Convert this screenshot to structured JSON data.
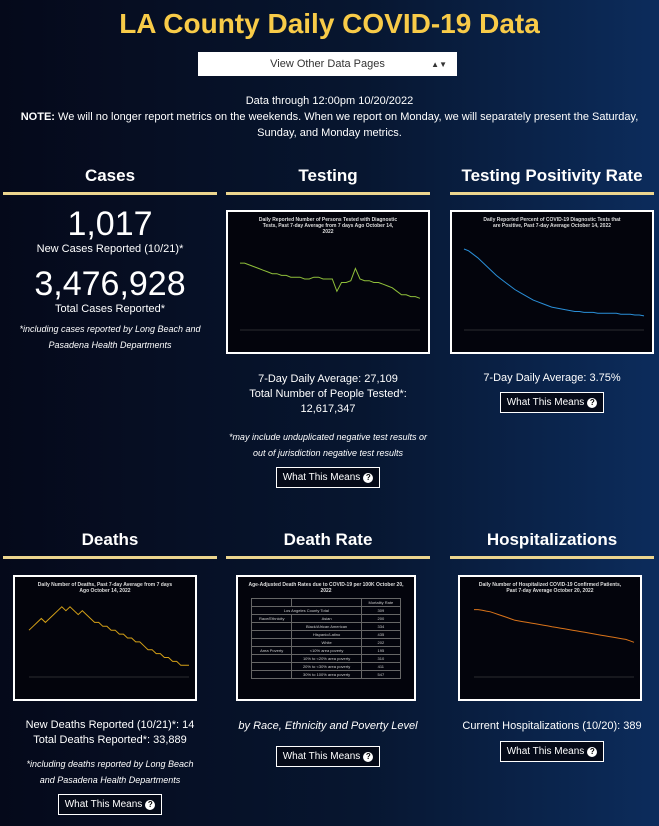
{
  "title": "LA County Daily COVID-19 Data",
  "dropdown": {
    "label": "View Other Data Pages"
  },
  "data_through": "Data through 12:00pm 10/20/2022",
  "note_label": "NOTE:",
  "note_text": " We will no longer report metrics on the weekends. When we report on Monday, we will separately present the Saturday, Sunday, and Monday metrics.",
  "what_this_means": "What This Means",
  "cases": {
    "header": "Cases",
    "new_value": "1,017",
    "new_label": "New Cases Reported (10/21)*",
    "total_value": "3,476,928",
    "total_label": "Total Cases Reported*",
    "footnote": "*including cases reported by Long Beach and Pasadena Health Departments"
  },
  "testing": {
    "header": "Testing",
    "chart_title": "Daily Reported Number of Persons Tested with Diagnostic Tests, Past 7-day Average from 7 days Ago October 14, 2022",
    "avg": "7-Day Daily Average: 27,109",
    "total_label": "Total Number of People Tested*:",
    "total_value": "12,617,347",
    "footnote": "*may include unduplicated negative test results or out of jurisdiction negative test results",
    "color": "#8fbf3a",
    "series": [
      38,
      38,
      37,
      36,
      35,
      34,
      33,
      32,
      32,
      31,
      31,
      30,
      30,
      30,
      29,
      29,
      30,
      30,
      29,
      29,
      29,
      22,
      27,
      27,
      28,
      35,
      29,
      28,
      28,
      27,
      27,
      26,
      25,
      24,
      22,
      20,
      20,
      19,
      19,
      18
    ]
  },
  "positivity": {
    "header": "Testing Positivity Rate",
    "chart_title": "Daily Reported Percent of COVID-19 Diagnostic Tests that are Positive, Past 7-day Average October 14, 2022",
    "avg": "7-Day Daily Average: 3.75%",
    "color": "#2a8fd8",
    "series": [
      92,
      90,
      86,
      82,
      77,
      72,
      67,
      62,
      58,
      54,
      50,
      46,
      43,
      40,
      37,
      34,
      32,
      30,
      28,
      26,
      25,
      24,
      23,
      22,
      21,
      21,
      20,
      20,
      20,
      19,
      19,
      19,
      19,
      19,
      18,
      18,
      18,
      17,
      17,
      16
    ]
  },
  "deaths": {
    "header": "Deaths",
    "chart_title": "Daily Number of Deaths, Past 7-day Average from 7 days Ago October 14, 2022",
    "new": "New Deaths Reported (10/21)*: 14",
    "total": "Total Deaths Reported*: 33,889",
    "footnote": "*including deaths reported by Long Beach and Pasadena Health Departments",
    "color": "#d4a017",
    "series": [
      12,
      13,
      14,
      15,
      14,
      15,
      16,
      17,
      18,
      17,
      18,
      17,
      16,
      17,
      16,
      15,
      14,
      14,
      13,
      13,
      12,
      12,
      11,
      11,
      10,
      10,
      9,
      9,
      8,
      7,
      7,
      6,
      6,
      5,
      5,
      4,
      4,
      3,
      3,
      3
    ]
  },
  "death_rate": {
    "header": "Death Rate",
    "chart_title": "Age-Adjusted Death Rates due to COVID-19 per 100K October 20, 2022",
    "col_header": "Mortality Rate",
    "total_label": "Los Angeles County Total",
    "total_value": "309",
    "rows": [
      [
        "Race/Ethnicity",
        "Asian",
        "200"
      ],
      [
        "",
        "Black/African American",
        "334"
      ],
      [
        "",
        "Hispanic/Latino",
        "435"
      ],
      [
        "",
        "White",
        "202"
      ],
      [
        "Area Poverty",
        "<10% area poverty",
        "195"
      ],
      [
        "",
        "10% to <20% area poverty",
        "310"
      ],
      [
        "",
        "20% to <30% area poverty",
        "411"
      ],
      [
        "",
        "30% to 100% area poverty",
        "547"
      ]
    ],
    "caption": "by Race, Ethnicity and Poverty Level"
  },
  "hosp": {
    "header": "Hospitalizations",
    "chart_title": "Daily Number of Hospitalized COVID-19 Confirmed Patients, Past 7-day Average October 20, 2022",
    "current": "Current Hospitalizations (10/20): 389",
    "color": "#d9731a",
    "series": [
      95,
      95,
      94,
      93,
      92,
      90,
      88,
      86,
      84,
      82,
      80,
      79,
      78,
      77,
      76,
      75,
      74,
      73,
      72,
      71,
      70,
      69,
      68,
      67,
      66,
      65,
      64,
      63,
      62,
      61,
      60,
      59,
      58,
      57,
      56,
      55,
      54,
      53,
      51,
      49
    ]
  }
}
